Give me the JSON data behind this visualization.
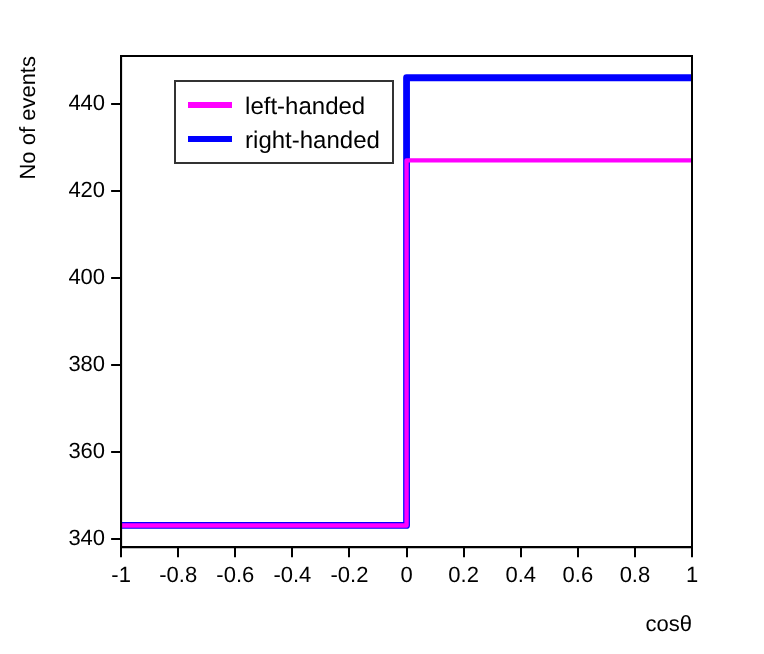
{
  "chart_data": {
    "type": "step",
    "xlabel": "cosθ",
    "ylabel": "No of events",
    "x": [
      -1,
      0,
      1
    ],
    "series": [
      {
        "name": "left-handed",
        "color": "#ff00ff",
        "values": [
          343,
          427,
          427
        ]
      },
      {
        "name": "right-handed",
        "color": "#0000ff",
        "values": [
          343,
          446,
          446
        ]
      }
    ],
    "xlim": [
      -1,
      1
    ],
    "xticks": [
      -1,
      -0.8,
      -0.6,
      -0.4,
      -0.2,
      0,
      0.2,
      0.4,
      0.6,
      0.8,
      1
    ],
    "ylim": [
      338,
      451
    ],
    "yticks": [
      340,
      360,
      380,
      400,
      420,
      440
    ],
    "grid": false,
    "legend": "top left",
    "marker": "none",
    "line_style": "solid"
  }
}
